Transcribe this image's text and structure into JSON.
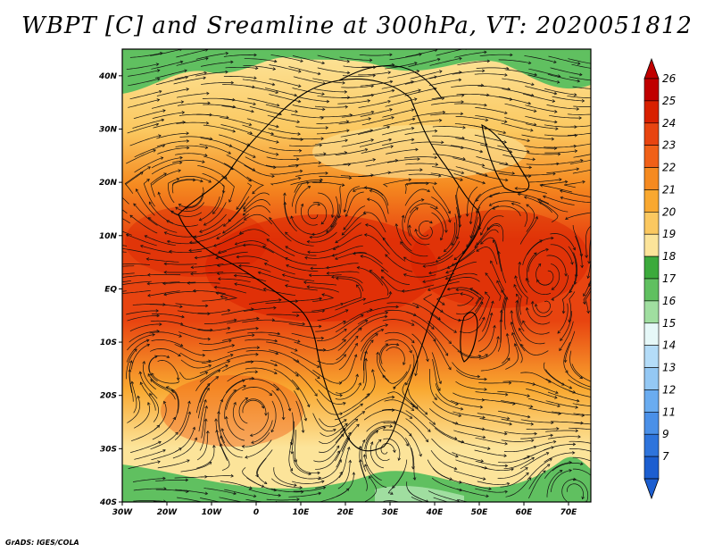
{
  "title": "WBPT [C] and Sreamline at 300hPa, VT: 2020051812",
  "credit": "GrADS: IGES/COLA",
  "map": {
    "lon_range": [
      -30,
      75
    ],
    "lat_range": [
      -40,
      45
    ],
    "x_ticks": [
      "30W",
      "20W",
      "10W",
      "0",
      "10E",
      "20E",
      "30E",
      "40E",
      "50E",
      "60E",
      "70E"
    ],
    "y_ticks": [
      "40N",
      "30N",
      "20N",
      "10N",
      "EQ",
      "10S",
      "20S",
      "30S",
      "40S"
    ],
    "y_tick_lats": [
      40,
      30,
      20,
      10,
      0,
      -10,
      -20,
      -30,
      -40
    ]
  },
  "colorbar": {
    "labels": [
      "26",
      "25",
      "24",
      "23",
      "22",
      "21",
      "20",
      "19",
      "18",
      "17",
      "16",
      "15",
      "14",
      "13",
      "12",
      "11",
      "9",
      "7"
    ],
    "colors": [
      "#c00000",
      "#d82000",
      "#e84410",
      "#f06018",
      "#f58a20",
      "#f9a830",
      "#fbc860",
      "#fce49a",
      "#3caa3c",
      "#60c060",
      "#a0dea0",
      "#e6f8f8",
      "#b4dcf8",
      "#94c8f4",
      "#6aacf0",
      "#4a90e8",
      "#2e74dc",
      "#1c5ed0"
    ]
  },
  "chart_data": {
    "type": "heatmap",
    "variable": "WBPT [C]",
    "level": "300hPa",
    "valid_time": "2020051812",
    "lon": [
      -30,
      75
    ],
    "lat": [
      -40,
      45
    ],
    "color_scale_labels": [
      26,
      25,
      24,
      23,
      22,
      21,
      20,
      19,
      18,
      17,
      16,
      15,
      14,
      13,
      12,
      11,
      9,
      7
    ]
  }
}
